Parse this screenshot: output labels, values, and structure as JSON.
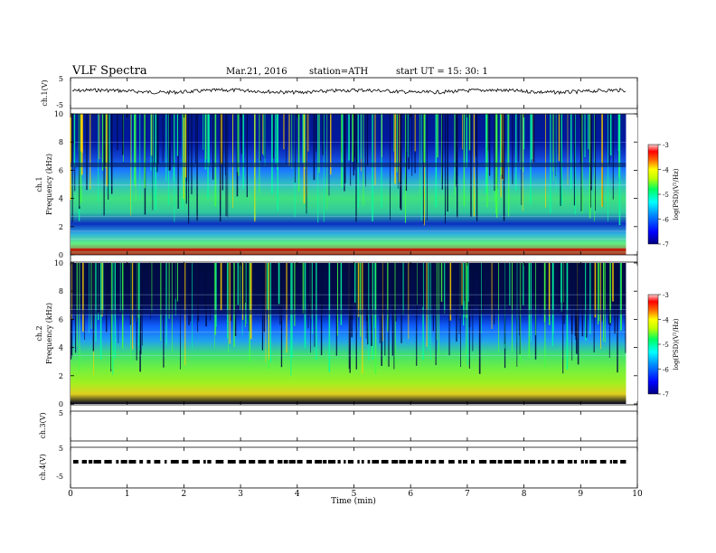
{
  "header": {
    "title": "VLF Spectra",
    "date": "Mar.21, 2016",
    "station": "station=ATH",
    "start_ut": "start  UT  =   15: 30: 1"
  },
  "chart_data": [
    {
      "type": "line",
      "ylabel": "ch.1(V)",
      "ylim": [
        -5,
        5
      ],
      "yticklabels": [
        "5",
        "-5"
      ],
      "description_values": "noisy trace near 0 V across 0–9.8 min"
    },
    {
      "type": "heatmap",
      "ylabel": "ch.1",
      "ylabel2": "Frequency (kHz)",
      "ylim": [
        0,
        10
      ],
      "yticks": [
        "0",
        "2",
        "4",
        "6",
        "8",
        "10"
      ],
      "colorbar": {
        "label": "log(PSD)(V²/Hz)",
        "min": -7,
        "max": -3,
        "ticks": [
          "-3",
          "-4",
          "-5",
          "-6",
          "-7"
        ]
      }
    },
    {
      "type": "heatmap",
      "ylabel": "ch.2",
      "ylabel2": "Frequency (kHz)",
      "ylim": [
        0,
        10
      ],
      "yticks": [
        "0",
        "2",
        "4",
        "6",
        "8",
        "10"
      ],
      "colorbar": {
        "label": "log(PSD)(V²/Hz)",
        "min": -7,
        "max": -3,
        "ticks": [
          "-3",
          "-4",
          "-5",
          "-6",
          "-7"
        ]
      }
    },
    {
      "type": "line",
      "ylabel": "ch.3(V)",
      "ylim": [
        -5,
        5
      ],
      "yticklabels": [
        "5"
      ]
    },
    {
      "type": "line",
      "ylabel": "ch.4(V)",
      "ylim": [
        -5,
        5
      ],
      "yticklabels": [
        "5",
        "-5"
      ]
    }
  ],
  "xaxis": {
    "label": "Time  (min)",
    "range": [
      0,
      10
    ],
    "ticks": [
      "0",
      "1",
      "2",
      "3",
      "4",
      "5",
      "6",
      "7",
      "8",
      "9",
      "10"
    ]
  },
  "colors": {
    "colormap": [
      "#000080",
      "#0000ff",
      "#0080ff",
      "#00ffff",
      "#00ff80",
      "#80ff00",
      "#ffff00",
      "#ff8000",
      "#ff0000",
      "#ffc0c0"
    ]
  }
}
